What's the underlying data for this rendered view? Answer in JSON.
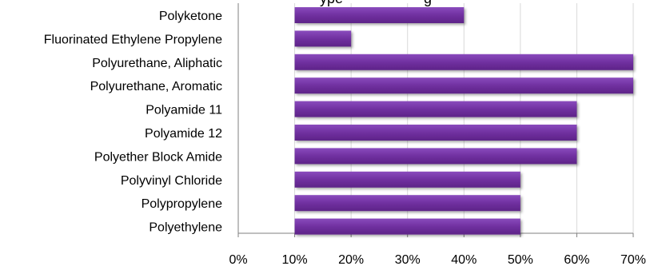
{
  "colors": {
    "bar": "#7030A0",
    "bar_highlight": "#8a4bbd",
    "grid": "#d9d9d9",
    "axis": "#7f7f7f"
  },
  "chart_data": {
    "type": "bar",
    "orientation": "horizontal",
    "title_partial": "ype",
    "title_partial_right": "g",
    "categories": [
      "Polyketone",
      "Fluorinated Ethylene Propylene",
      "Polyurethane, Aliphatic",
      "Polyurethane, Aromatic",
      "Polyamide 11",
      "Polyamide 12",
      "Polyether Block Amide",
      "Polyvinyl Chloride",
      "Polypropylene",
      "Polyethylene"
    ],
    "bar_start": 10,
    "values": [
      40,
      20,
      70,
      70,
      60,
      60,
      60,
      50,
      50,
      50
    ],
    "xlim": [
      0,
      70
    ],
    "xticks": [
      0,
      10,
      20,
      30,
      40,
      50,
      60,
      70
    ],
    "tick_labels": [
      "0%",
      "10%",
      "20%",
      "30%",
      "40%",
      "50%",
      "60%",
      "70%"
    ],
    "grid": true,
    "legend": "none"
  }
}
